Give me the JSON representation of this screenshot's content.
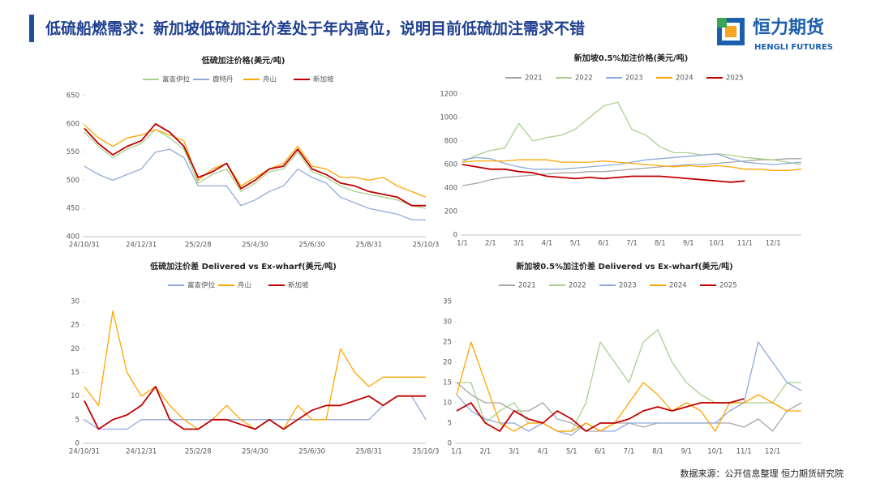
{
  "header": {
    "title": "低硫船燃需求：新加坡低硫加注价差处于年内高位，说明目前低硫加注需求不错",
    "logo": "恒力期货",
    "logo_en": "HENGLI FUTURES"
  },
  "source": "数据来源：公开信息整理  恒力期货研究院",
  "chart_data": [
    {
      "type": "line",
      "title": "低硫加注价格(美元/吨)",
      "legend": "top",
      "categories": [
        "24/10/31",
        null,
        null,
        null,
        "24/12/31",
        null,
        null,
        null,
        "25/2/28",
        null,
        null,
        null,
        "25/4/30",
        null,
        null,
        null,
        "25/6/30",
        null,
        null,
        null,
        "25/8/31",
        null,
        null,
        null,
        "25/10/3"
      ],
      "ylim": [
        400,
        650
      ],
      "yticks": [
        400,
        450,
        500,
        550,
        600,
        650
      ],
      "series": [
        {
          "name": "富查伊拉",
          "color": "#a9d18e",
          "values": [
            585,
            560,
            540,
            555,
            565,
            590,
            575,
            555,
            495,
            510,
            520,
            480,
            495,
            515,
            520,
            550,
            515,
            505,
            490,
            480,
            475,
            470,
            465,
            455,
            450
          ]
        },
        {
          "name": "鹿特丹",
          "color": "#8faadc",
          "values": [
            525,
            510,
            500,
            510,
            520,
            550,
            555,
            540,
            490,
            490,
            490,
            455,
            465,
            480,
            490,
            520,
            505,
            495,
            470,
            460,
            450,
            445,
            440,
            430,
            430
          ]
        },
        {
          "name": "舟山",
          "color": "#ffa500",
          "values": [
            598,
            575,
            560,
            575,
            580,
            590,
            580,
            570,
            500,
            520,
            530,
            490,
            505,
            520,
            530,
            560,
            525,
            520,
            505,
            505,
            500,
            505,
            490,
            480,
            470
          ]
        },
        {
          "name": "新加坡",
          "color": "#c00000",
          "values": [
            592,
            565,
            545,
            560,
            570,
            600,
            585,
            560,
            505,
            515,
            530,
            485,
            500,
            520,
            525,
            555,
            520,
            510,
            495,
            490,
            480,
            475,
            470,
            455,
            455
          ]
        }
      ]
    },
    {
      "type": "line",
      "title": "新加坡0.5%加注价格(美元/吨)",
      "legend": "top",
      "categories": [
        "1/1",
        null,
        "2/1",
        null,
        "3/1",
        null,
        "4/1",
        null,
        "5/1",
        null,
        "6/1",
        null,
        "7/1",
        null,
        "8/1",
        null,
        "9/1",
        null,
        "10/1",
        null,
        "11/1",
        null,
        "12/1",
        null,
        null
      ],
      "ylim": [
        0,
        1200
      ],
      "yticks": [
        0,
        200,
        400,
        600,
        800,
        1000,
        1200
      ],
      "series": [
        {
          "name": "2021",
          "color": "#a6a6a6",
          "values": [
            420,
            440,
            470,
            490,
            500,
            510,
            520,
            530,
            530,
            540,
            540,
            550,
            560,
            570,
            580,
            590,
            600,
            600,
            610,
            620,
            630,
            640,
            640,
            650,
            650
          ]
        },
        {
          "name": "2022",
          "color": "#a9d18e",
          "values": [
            620,
            680,
            720,
            740,
            950,
            800,
            830,
            850,
            900,
            1000,
            1100,
            1130,
            900,
            850,
            750,
            700,
            700,
            680,
            690,
            680,
            660,
            650,
            640,
            620,
            600
          ]
        },
        {
          "name": "2023",
          "color": "#8faadc",
          "values": [
            640,
            660,
            650,
            610,
            580,
            560,
            560,
            560,
            570,
            580,
            590,
            600,
            620,
            640,
            650,
            660,
            670,
            680,
            690,
            650,
            620,
            610,
            600,
            610,
            620
          ]
        },
        {
          "name": "2024",
          "color": "#ffa500",
          "values": [
            620,
            630,
            630,
            630,
            640,
            640,
            640,
            620,
            620,
            620,
            630,
            620,
            610,
            600,
            590,
            580,
            590,
            580,
            590,
            580,
            560,
            560,
            550,
            550,
            560
          ]
        },
        {
          "name": "2025",
          "color": "#c00000",
          "values": [
            600,
            580,
            560,
            560,
            540,
            530,
            500,
            490,
            480,
            490,
            480,
            490,
            500,
            500,
            500,
            490,
            480,
            470,
            460,
            450,
            460,
            null,
            null,
            null,
            null
          ]
        }
      ]
    },
    {
      "type": "line",
      "title": "低硫加注价差 Delivered vs Ex-wharf(美元/吨)",
      "legend": "top",
      "categories": [
        "24/10/31",
        null,
        null,
        null,
        "24/12/31",
        null,
        null,
        null,
        "25/2/28",
        null,
        null,
        null,
        "25/4/30",
        null,
        null,
        null,
        "25/6/30",
        null,
        null,
        null,
        "25/8/31",
        null,
        null,
        null,
        "25/10/3"
      ],
      "ylim": [
        0,
        30
      ],
      "yticks": [
        0,
        5,
        10,
        15,
        20,
        25,
        30
      ],
      "series": [
        {
          "name": "富查伊拉",
          "color": "#8faadc",
          "values": [
            5,
            3,
            3,
            3,
            5,
            5,
            5,
            5,
            5,
            5,
            5,
            5,
            5,
            5,
            5,
            5,
            5,
            5,
            5,
            5,
            5,
            8,
            10,
            10,
            5
          ]
        },
        {
          "name": "舟山",
          "color": "#ffa500",
          "values": [
            12,
            8,
            28,
            15,
            10,
            12,
            8,
            5,
            3,
            5,
            8,
            5,
            3,
            5,
            3,
            8,
            5,
            5,
            20,
            15,
            12,
            14,
            14,
            14,
            14
          ]
        },
        {
          "name": "新加坡",
          "color": "#c00000",
          "values": [
            9,
            3,
            5,
            6,
            8,
            12,
            5,
            3,
            3,
            5,
            5,
            4,
            3,
            5,
            3,
            5,
            7,
            8,
            8,
            9,
            10,
            8,
            10,
            10,
            10
          ]
        }
      ]
    },
    {
      "type": "line",
      "title": "新加坡0.5%加注价差 Delivered vs Ex-wharf(美元/吨)",
      "legend": "top",
      "categories": [
        "1/1",
        null,
        "2/1",
        null,
        "3/1",
        null,
        "4/1",
        null,
        "5/1",
        null,
        "6/1",
        null,
        "7/1",
        null,
        "8/1",
        null,
        "9/1",
        null,
        "10/1",
        null,
        "11/1",
        null,
        "12/1",
        null,
        null
      ],
      "ylim": [
        0,
        35
      ],
      "yticks": [
        0,
        5,
        10,
        15,
        20,
        25,
        30,
        35
      ],
      "series": [
        {
          "name": "2021",
          "color": "#a6a6a6",
          "values": [
            15,
            12,
            10,
            10,
            8,
            8,
            10,
            6,
            5,
            3,
            3,
            5,
            5,
            4,
            5,
            5,
            5,
            5,
            5,
            5,
            4,
            6,
            3,
            8,
            10
          ]
        },
        {
          "name": "2022",
          "color": "#a9d18e",
          "values": [
            15,
            15,
            5,
            8,
            10,
            5,
            5,
            3,
            3,
            10,
            25,
            20,
            15,
            25,
            28,
            20,
            15,
            12,
            10,
            10,
            10,
            10,
            10,
            15,
            15
          ]
        },
        {
          "name": "2023",
          "color": "#8faadc",
          "values": [
            12,
            8,
            6,
            5,
            5,
            3,
            5,
            3,
            2,
            5,
            3,
            3,
            5,
            5,
            5,
            5,
            5,
            5,
            5,
            8,
            10,
            25,
            20,
            15,
            13
          ]
        },
        {
          "name": "2024",
          "color": "#ffa500",
          "values": [
            12,
            25,
            15,
            5,
            3,
            5,
            5,
            3,
            3,
            5,
            3,
            5,
            10,
            15,
            12,
            8,
            10,
            8,
            3,
            10,
            10,
            12,
            10,
            8,
            8
          ]
        },
        {
          "name": "2025",
          "color": "#c00000",
          "values": [
            8,
            10,
            5,
            3,
            8,
            6,
            5,
            8,
            6,
            3,
            5,
            5,
            6,
            8,
            9,
            8,
            9,
            10,
            10,
            10,
            11,
            null,
            null,
            null,
            null
          ]
        }
      ]
    }
  ]
}
